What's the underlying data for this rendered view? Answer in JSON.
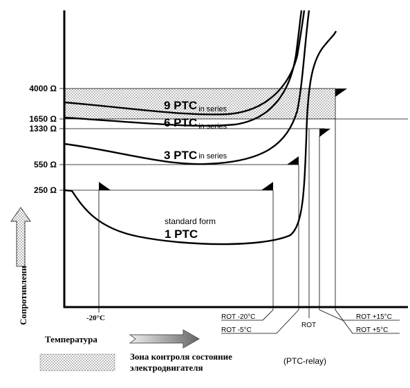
{
  "y_labels": [
    "4000 Ω",
    "1650 Ω",
    "1330 Ω",
    "550 Ω",
    "250 Ω"
  ],
  "curves": [
    {
      "label": "9 PTC",
      "suffix": "in series"
    },
    {
      "label": "6 PTC",
      "suffix": "in series"
    },
    {
      "label": "3 PTC",
      "suffix": "in series"
    },
    {
      "label": "1 PTC",
      "note": "standard form"
    }
  ],
  "x_labels": [
    "-20°C",
    "ROT -20°C",
    "ROT -5°C",
    "ROT",
    "ROT +15°C",
    "ROT +5°C"
  ],
  "axis_y_title": "Сопротивлени",
  "axis_x_title": "Температура",
  "legend": {
    "lines": [
      "Зона контроля состояние",
      "электродвигателя"
    ],
    "relay": "(PTC-relay)"
  }
}
